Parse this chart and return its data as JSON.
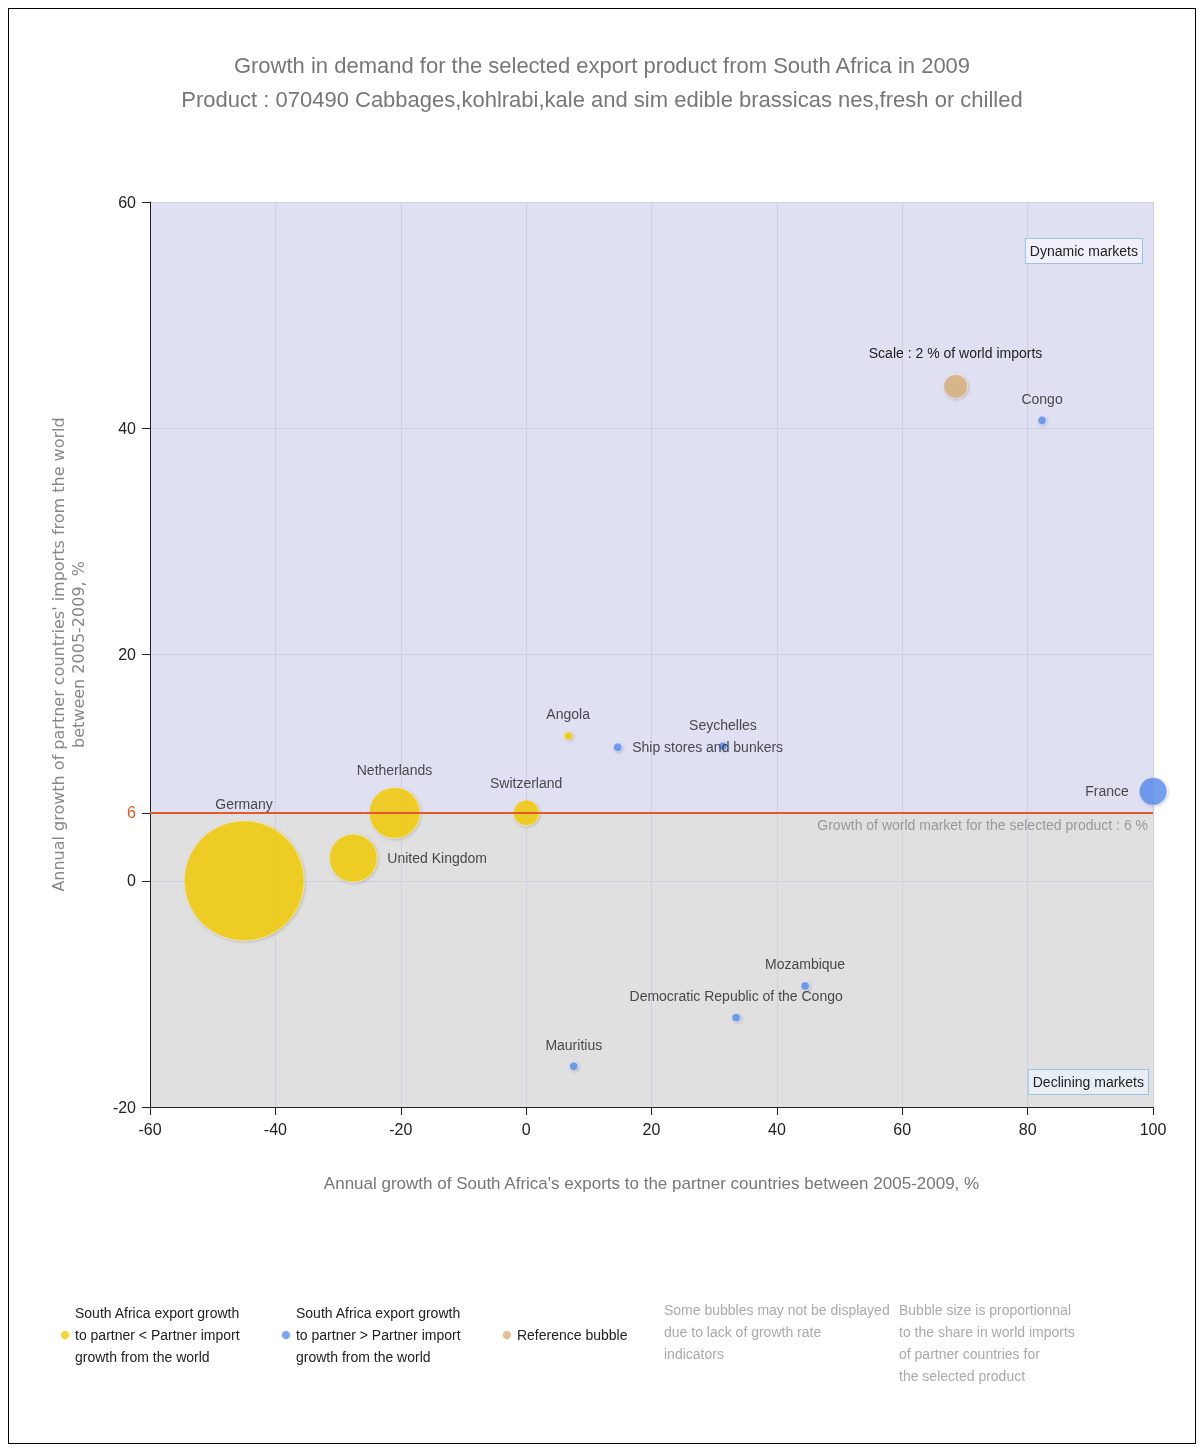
{
  "chart_data": {
    "type": "bubble",
    "title": "Growth in demand for the selected export product from South Africa in 2009",
    "subtitle": "Product : 070490 Cabbages,kohlrabi,kale and sim edible brassicas nes,fresh or chilled",
    "xlabel": "Annual growth of South Africa's exports to the partner countries between 2005-2009, %",
    "ylabel": "Annual growth of partner countries' imports from the world\nbetween 2005-2009, %",
    "xlim": [
      -60,
      100
    ],
    "xticks": [
      -60,
      -40,
      -20,
      0,
      20,
      40,
      60,
      80,
      100
    ],
    "ylim": [
      -20,
      60
    ],
    "yticks": [
      -20,
      0,
      6,
      20,
      40,
      60
    ],
    "grid": true,
    "legend": "bottom",
    "series": [
      {
        "name": "South Africa export growth\nto partner < Partner import\ngrowth from the world",
        "color": "#f5cc00",
        "x": [
          -45,
          -27.6,
          -21,
          0,
          6.7
        ],
        "values": [
          0,
          2,
          6,
          6,
          12.8
        ],
        "sizes": [
          1,
          0.16,
          0.18,
          0.046,
          0.005
        ],
        "value_labels": [
          "Germany",
          "United Kingdom",
          "Netherlands",
          "Switzerland",
          "Angola"
        ]
      },
      {
        "name": "South Africa export growth\nto partner > Partner import\ngrowth from the world",
        "color": "#5b8def",
        "x": [
          100,
          82.3,
          44.5,
          33.5,
          7.6,
          14.6,
          31.4
        ],
        "values": [
          7.9,
          40.7,
          -9.3,
          -12.1,
          -16.4,
          11.8,
          11.9
        ],
        "sizes": [
          0.054,
          0.005,
          0.005,
          0.005,
          0.005,
          0.005,
          0.005
        ],
        "value_labels": [
          "France",
          "Congo",
          "Mozambique",
          "Democratic Republic of the Congo",
          "Mauritius",
          "Ship stores and bunkers",
          "Seychelles"
        ]
      },
      {
        "name": "Reference bubble",
        "color": "#d9b07a",
        "x": [
          68.5
        ],
        "values": [
          43.7
        ],
        "sizes": [
          0.04
        ]
      }
    ],
    "ref_lines": [
      {
        "axis": "y",
        "value": 6,
        "label": "Growth of world market for the selected product : 6 %",
        "color": "#e05a2b"
      }
    ],
    "bands": [
      {
        "axis": "y",
        "from": 6,
        "to": 60,
        "color": "#dfe0f2"
      },
      {
        "axis": "y",
        "from": -20,
        "to": 6,
        "color": "#e0e0e0"
      }
    ],
    "annotations": [
      {
        "text": "Scale : 2 % of world imports",
        "x": 68.5,
        "y": 43.7
      },
      "Dynamic markets",
      "Declining markets",
      "Some bubbles may not be displayed\ndue to lack of growth rate\nindicators",
      "Bubble size is proportionnal\nto the share in world imports\nof partner countries for\nthe selected product"
    ]
  }
}
